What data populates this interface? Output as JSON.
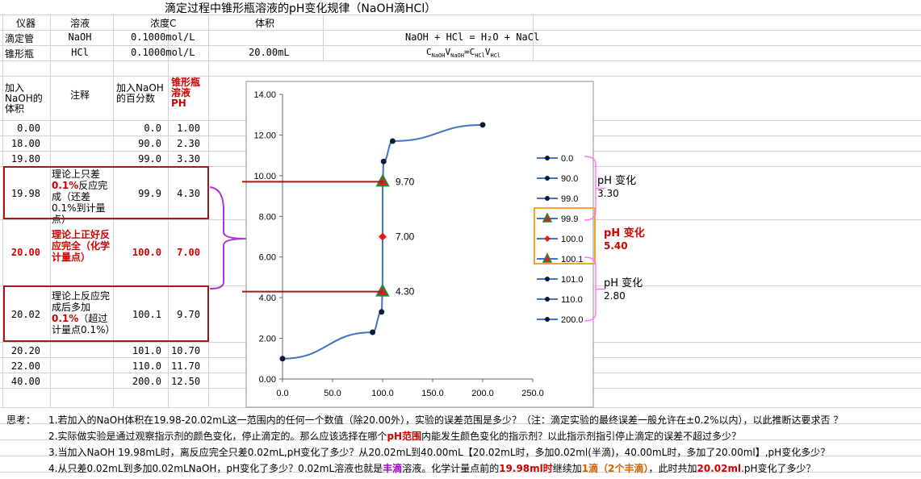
{
  "title": "滴定过程中锥形瓶溶液的pH变化规律（NaOH滴HCl）",
  "header": {
    "col_instrument": "仪器",
    "col_solution": "溶液",
    "col_conc": "浓度C",
    "col_volume": "体积"
  },
  "rows_top": [
    {
      "instrument": "滴定管",
      "solution": "NaOH",
      "conc": "0.1000mol/L",
      "volume": ""
    },
    {
      "instrument": "锥形瓶",
      "solution": "HCl",
      "conc": "0.1000mol/L",
      "volume": "20.00mL"
    }
  ],
  "equation": "NaOH + HCl = H₂O + NaCl",
  "equation2": {
    "c1": "C",
    "s1": "NaOH",
    "v1": "V",
    "s2": "NaOH",
    "eq": "=",
    "c2": "C",
    "s3": "HCl",
    "v2": "V",
    "s4": "HCl"
  },
  "table_header": {
    "vol": "加入NaOH的体积",
    "note": "注释",
    "pct": "加入NaOH的百分数",
    "ph": "锥形瓶溶液PH"
  },
  "table_rows": [
    {
      "vol": "0.00",
      "note": "",
      "pct": "0.0",
      "ph": "1.00"
    },
    {
      "vol": "18.00",
      "note": "",
      "pct": "90.0",
      "ph": "2.30"
    },
    {
      "vol": "19.80",
      "note": "",
      "pct": "99.0",
      "ph": "3.30"
    },
    {
      "vol": "19.98",
      "note_a": "理论上只差",
      "note_b": "0.1%",
      "note_c": "反应完成（还差0.1%到计量点）",
      "pct": "99.9",
      "ph": "4.30"
    },
    {
      "vol": "20.00",
      "note": "理论上正好反应完全（化学计量点）",
      "pct": "100.0",
      "ph": "7.00"
    },
    {
      "vol": "20.02",
      "note_a": "理论上反应完成后多加",
      "note_b": "0.1%",
      "note_c": "（超过计量点0.1%）",
      "pct": "100.1",
      "ph": "9.70"
    },
    {
      "vol": "20.20",
      "note": "",
      "pct": "101.0",
      "ph": "10.70"
    },
    {
      "vol": "22.00",
      "note": "",
      "pct": "110.0",
      "ph": "11.70"
    },
    {
      "vol": "40.00",
      "note": "",
      "pct": "200.0",
      "ph": "12.50"
    }
  ],
  "chart_data": {
    "type": "scatter",
    "x": [
      0.0,
      90.0,
      99.0,
      99.9,
      100.0,
      100.1,
      101.0,
      110.0,
      200.0
    ],
    "y": [
      1.0,
      2.3,
      3.3,
      4.3,
      7.0,
      9.7,
      10.7,
      11.7,
      12.5
    ],
    "xlim": [
      0,
      250
    ],
    "ylim": [
      0,
      14
    ],
    "x_ticks": [
      "0.0",
      "50.0",
      "100.0",
      "150.0",
      "200.0",
      "250.0"
    ],
    "y_ticks": [
      "0.00",
      "2.00",
      "4.00",
      "6.00",
      "8.00",
      "10.00",
      "12.00",
      "14.00"
    ],
    "annotations": [
      "9.70",
      "7.00",
      "4.30"
    ],
    "legend": [
      "0.0",
      "90.0",
      "99.0",
      "99.9",
      "100.0",
      "100.1",
      "101.0",
      "110.0",
      "200.0"
    ],
    "legend_placement": "right",
    "grid": false
  },
  "ph_changes": [
    {
      "label": "pH 变化",
      "value": "3.30"
    },
    {
      "label": "pH 变化",
      "value": "5.40"
    },
    {
      "label": "pH 变化",
      "value": "2.80"
    }
  ],
  "questions": {
    "label": "思考：",
    "q1": "1.若加入的NaOH体积在19.98-20.02mL这一范围内的任何一个数值（除20.00外），实验的误差范围是多少？（注：滴定实验的最终误差一般允许在±0.2%以内），以此推断达要求否 ？",
    "q2_a": "2.实际做实验是通过观察指示剂的颜色变化，停止滴定的。那么应该选择在哪个",
    "q2_b": "pH范围",
    "q2_c": "内能发生颜色变化的指示剂？以此指示剂指引停止滴定的误差不超过多少？",
    "q3": "3.当加入NaOH  19.98mL时，离反应完全只差0.02mL,pH变化了多少？从20.02mL到40.00mL【20.02mL时，多加0.02ml(半滴)，40.00mL时，多加了20.00ml】,pH变化多少？",
    "q4_a": "4.从只差0.02mL到多加0.02mLNaOH，pH变化了多少？0.02mL溶液也就是",
    "q4_b": "丰滴",
    "q4_c": "溶液。化学计量点前的",
    "q4_d": "19.98ml时",
    "q4_e": "继续加",
    "q4_f": "1滴（2个丰滴）",
    "q4_g": "，此时共加",
    "q4_h": "20.02ml",
    "q4_i": ".pH变化了多少？"
  },
  "colors": {
    "line": "#4472c4",
    "marker_dark": "#0d1b3a",
    "marker_red": "#e51c23",
    "marker_green": "#1a8c3a",
    "box_red": "#a51616",
    "bracket": "#ff77ff",
    "orange_box": "#f5a623",
    "pH_red": "#d00000"
  }
}
